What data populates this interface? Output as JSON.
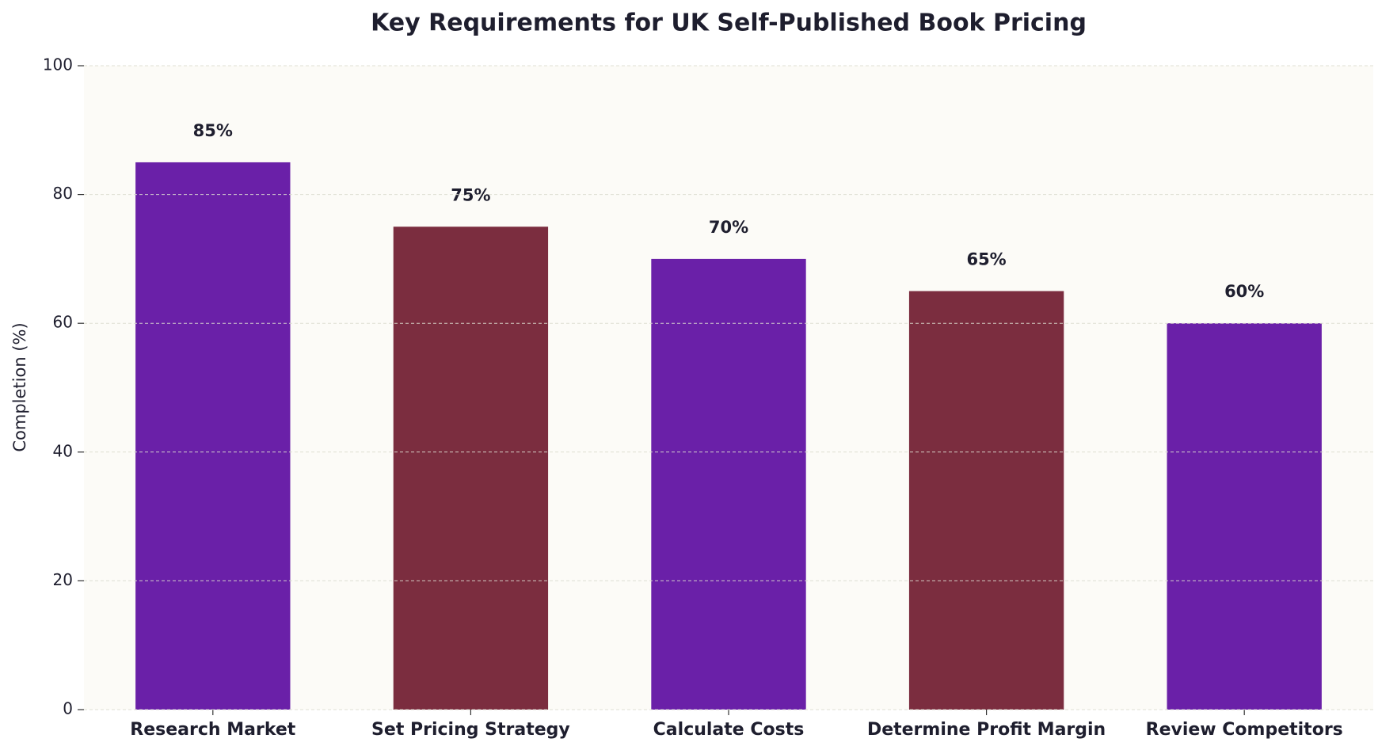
{
  "chart_data": {
    "type": "bar",
    "title": "Key Requirements for UK Self-Published Book Pricing",
    "ylabel": "Completion (%)",
    "categories": [
      "Research Market",
      "Set Pricing Strategy",
      "Calculate Costs",
      "Determine Profit Margin",
      "Review Competitors"
    ],
    "values": [
      85,
      75,
      70,
      65,
      60
    ],
    "value_labels": [
      "85%",
      "75%",
      "70%",
      "65%",
      "60%"
    ],
    "colors": [
      "#6a20a8",
      "#7b2d3f",
      "#6a20a8",
      "#7b2d3f",
      "#6a20a8"
    ],
    "ylim": [
      0,
      100
    ],
    "yticks": [
      0,
      20,
      40,
      60,
      80,
      100
    ],
    "grid": true
  }
}
